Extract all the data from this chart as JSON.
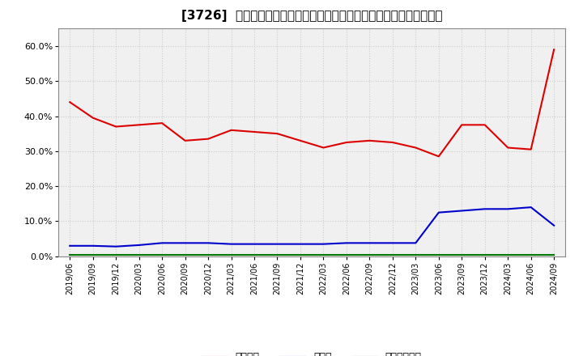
{
  "title": "[3726]  自己資本、のれん、繰延税金資産の総資産に対する比率の推移",
  "x_labels": [
    "2019/06",
    "2019/09",
    "2019/12",
    "2020/03",
    "2020/06",
    "2020/09",
    "2020/12",
    "2021/03",
    "2021/06",
    "2021/09",
    "2021/12",
    "2022/03",
    "2022/06",
    "2022/09",
    "2022/12",
    "2023/03",
    "2023/06",
    "2023/09",
    "2023/12",
    "2024/03",
    "2024/06",
    "2024/09"
  ],
  "jikoshihon": [
    44.0,
    39.5,
    37.0,
    37.5,
    38.0,
    33.0,
    33.5,
    36.0,
    35.5,
    35.0,
    33.0,
    31.0,
    32.5,
    33.0,
    32.5,
    31.0,
    28.5,
    37.5,
    37.5,
    31.0,
    30.5,
    59.0
  ],
  "noren": [
    3.0,
    3.0,
    2.8,
    3.2,
    3.8,
    3.8,
    3.8,
    3.5,
    3.5,
    3.5,
    3.5,
    3.5,
    3.8,
    3.8,
    3.8,
    3.8,
    12.5,
    13.0,
    13.5,
    13.5,
    14.0,
    8.8
  ],
  "kurinobe": [
    0.5,
    0.5,
    0.5,
    0.5,
    0.5,
    0.5,
    0.5,
    0.5,
    0.5,
    0.5,
    0.5,
    0.5,
    0.5,
    0.5,
    0.5,
    0.5,
    0.5,
    0.5,
    0.5,
    0.5,
    0.5,
    0.5
  ],
  "jikoshihon_color": "#dd0000",
  "noren_color": "#0000cc",
  "kurinobe_color": "#007700",
  "ylim": [
    0,
    65
  ],
  "yticks": [
    0,
    10,
    20,
    30,
    40,
    50,
    60
  ],
  "ytick_labels": [
    "0.0%",
    "10.0%",
    "20.0%",
    "30.0%",
    "40.0%",
    "50.0%",
    "60.0%"
  ],
  "legend_jikoshihon": "自己資本",
  "legend_noren": "のれん",
  "legend_kurinobe": "繰延税金資産",
  "bg_color": "#ffffff",
  "plot_bg_color": "#f0f0f0",
  "grid_color": "#cccccc",
  "title_fontsize": 11,
  "legend_fontsize": 9,
  "tick_fontsize": 8
}
